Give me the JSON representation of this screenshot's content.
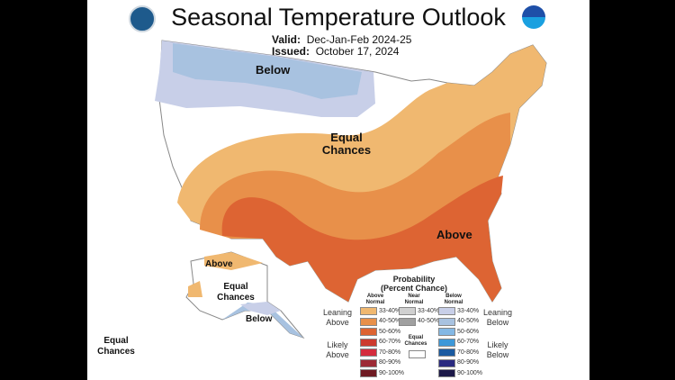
{
  "header": {
    "title": "Seasonal Temperature Outlook",
    "valid_label": "Valid:",
    "valid_value": "Dec-Jan-Feb 2024-25",
    "issued_label": "Issued:",
    "issued_value": "October 17, 2024",
    "logos": [
      "doc-seal",
      "noaa-logo"
    ]
  },
  "map": {
    "labels": {
      "below": "Below",
      "equal_chances": "Equal Chances",
      "above": "Above",
      "ak_above": "Above",
      "ak_equal": "Equal Chances",
      "ak_below": "Below",
      "hi_equal": "Equal Chances"
    }
  },
  "legend": {
    "title": "Probability",
    "subtitle": "(Percent Chance)",
    "columns": [
      "Above Normal",
      "Near Normal",
      "Below Normal"
    ],
    "left_groups": [
      "Leaning Above",
      "Likely Above"
    ],
    "right_groups": [
      "Leaning Below",
      "Likely Below"
    ],
    "equal_chances": "Equal Chances",
    "above": [
      {
        "range": "33-40%",
        "color": "#f0b870"
      },
      {
        "range": "40-50%",
        "color": "#e8904a"
      },
      {
        "range": "50-60%",
        "color": "#dd6433"
      },
      {
        "range": "60-70%",
        "color": "#cc3a2e"
      },
      {
        "range": "70-80%",
        "color": "#d42c3e"
      },
      {
        "range": "80-90%",
        "color": "#9c2a35"
      },
      {
        "range": "90-100%",
        "color": "#6e1a22"
      }
    ],
    "near": [
      {
        "range": "33-40%",
        "color": "#d0d0d0"
      },
      {
        "range": "40-50%",
        "color": "#a0a0a0"
      }
    ],
    "below": [
      {
        "range": "33-40%",
        "color": "#c8cfe8"
      },
      {
        "range": "40-50%",
        "color": "#a8c2e0"
      },
      {
        "range": "50-60%",
        "color": "#84b8e4"
      },
      {
        "range": "60-70%",
        "color": "#3d98d8"
      },
      {
        "range": "70-80%",
        "color": "#1a5aa0"
      },
      {
        "range": "80-90%",
        "color": "#2a2a80"
      },
      {
        "range": "90-100%",
        "color": "#1c1848"
      }
    ]
  }
}
